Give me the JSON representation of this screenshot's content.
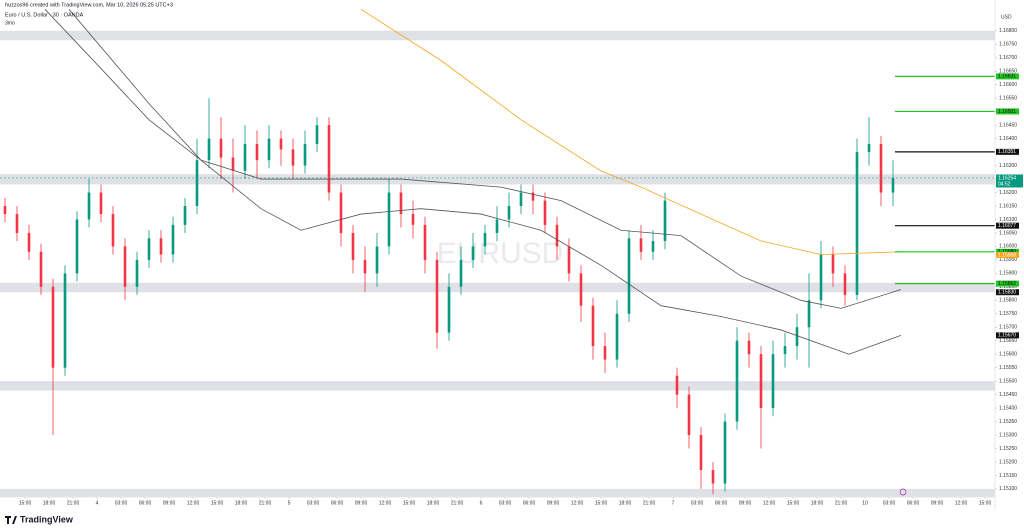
{
  "chart_data": {
    "type": "candlestick",
    "header": "huzzos96 created with TradingView.com, Mar 10, 2026 05:25 UTC+3",
    "title": "Euro / U.S. Dollar · 30 · OANDA",
    "subtitle": "3mo",
    "watermark": "EURUSD",
    "y_axis_unit": "USD",
    "brand": "TradingView",
    "up_color": "#089981",
    "down_color": "#f23645",
    "x": [
      12.5,
      14,
      15.5,
      17,
      18.5,
      20,
      21.5,
      23,
      24.5,
      26,
      27.5,
      29,
      30.5,
      32,
      33.5,
      35,
      36.5,
      38,
      39.5,
      41,
      42.5,
      44,
      45.5,
      47,
      48.5,
      50,
      51.5,
      53,
      54.5,
      56,
      57.5,
      59,
      60.5,
      62,
      63.5,
      65,
      66.5,
      68,
      69.5,
      71,
      72.5,
      74,
      75.5,
      77,
      78.5,
      80,
      81.5,
      83,
      84.5,
      86,
      87.5,
      89,
      90.5,
      92,
      93.5,
      95,
      96.5,
      98,
      99.5,
      101,
      102.5,
      104,
      105.5,
      107,
      108.5,
      110,
      111.5,
      113,
      114.5,
      116,
      117.5,
      119,
      120.5,
      122,
      123.5
    ],
    "open": [
      1.1615,
      1.1612,
      1.1605,
      1.1598,
      1.1585,
      1.1555,
      1.159,
      1.161,
      1.162,
      1.1612,
      1.16,
      1.1585,
      1.1595,
      1.1603,
      1.1597,
      1.1608,
      1.1615,
      1.1632,
      1.164,
      1.1633,
      1.1628,
      1.1638,
      1.1632,
      1.164,
      1.1636,
      1.163,
      1.1638,
      1.1645,
      1.162,
      1.1605,
      1.1595,
      1.159,
      1.16,
      1.162,
      1.1612,
      1.1608,
      1.1595,
      1.1568,
      1.1585,
      1.1595,
      1.16,
      1.1605,
      1.161,
      1.1615,
      1.162,
      1.1617,
      1.1608,
      1.16,
      1.159,
      1.1578,
      1.1563,
      1.1558,
      1.1575,
      1.1603,
      1.1598,
      1.1602,
      1.1552,
      1.1545,
      1.153,
      1.1517,
      1.1512,
      1.1535,
      1.1565,
      1.156,
      1.154,
      1.156,
      1.1563,
      1.157,
      1.158,
      1.1597,
      1.159,
      1.1582,
      1.1635,
      1.1638,
      1.162
    ],
    "high": [
      1.1618,
      1.1615,
      1.1608,
      1.1601,
      1.1588,
      1.1593,
      1.1613,
      1.1625,
      1.1623,
      1.1615,
      1.1603,
      1.1598,
      1.1606,
      1.1606,
      1.1611,
      1.1618,
      1.164,
      1.1655,
      1.1648,
      1.164,
      1.1645,
      1.1643,
      1.1645,
      1.1643,
      1.164,
      1.1643,
      1.1648,
      1.1648,
      1.1623,
      1.1608,
      1.16,
      1.1605,
      1.1625,
      1.1623,
      1.1617,
      1.1611,
      1.1598,
      1.159,
      1.16,
      1.1605,
      1.1608,
      1.1615,
      1.162,
      1.1623,
      1.1623,
      1.162,
      1.1611,
      1.1603,
      1.1593,
      1.1581,
      1.1568,
      1.158,
      1.1606,
      1.1608,
      1.1606,
      1.162,
      1.1555,
      1.1548,
      1.1533,
      1.152,
      1.1538,
      1.157,
      1.1568,
      1.1563,
      1.1565,
      1.1568,
      1.1575,
      1.159,
      1.1602,
      1.16,
      1.1593,
      1.164,
      1.1648,
      1.1641,
      1.1632
    ],
    "low": [
      1.1609,
      1.1602,
      1.1595,
      1.1582,
      1.153,
      1.1552,
      1.1587,
      1.1607,
      1.1609,
      1.1597,
      1.158,
      1.1582,
      1.1592,
      1.1594,
      1.1594,
      1.1605,
      1.1612,
      1.1629,
      1.1625,
      1.162,
      1.1625,
      1.1625,
      1.1629,
      1.163,
      1.1625,
      1.1627,
      1.1635,
      1.1617,
      1.16,
      1.159,
      1.1583,
      1.1585,
      1.1597,
      1.1607,
      1.1603,
      1.159,
      1.1562,
      1.1565,
      1.1582,
      1.1592,
      1.1597,
      1.1602,
      1.1607,
      1.1612,
      1.1612,
      1.1605,
      1.1595,
      1.1587,
      1.1572,
      1.1558,
      1.1553,
      1.1555,
      1.1572,
      1.1595,
      1.1595,
      1.1599,
      1.154,
      1.1525,
      1.151,
      1.1508,
      1.1509,
      1.1532,
      1.1555,
      1.1525,
      1.1537,
      1.1555,
      1.1558,
      1.1555,
      1.1577,
      1.1585,
      1.1578,
      1.158,
      1.163,
      1.1615,
      1.1615
    ],
    "close": [
      1.1612,
      1.1605,
      1.1598,
      1.1585,
      1.1555,
      1.159,
      1.161,
      1.162,
      1.1612,
      1.16,
      1.1585,
      1.1595,
      1.1603,
      1.1597,
      1.1608,
      1.1615,
      1.1632,
      1.164,
      1.1633,
      1.1628,
      1.1638,
      1.1632,
      1.164,
      1.1636,
      1.163,
      1.1638,
      1.1645,
      1.162,
      1.1605,
      1.1595,
      1.159,
      1.16,
      1.162,
      1.1612,
      1.1608,
      1.1595,
      1.1568,
      1.1585,
      1.1595,
      1.16,
      1.1605,
      1.161,
      1.1615,
      1.162,
      1.1617,
      1.1608,
      1.16,
      1.159,
      1.1578,
      1.1563,
      1.1558,
      1.1575,
      1.1603,
      1.1598,
      1.1602,
      1.1617,
      1.1545,
      1.153,
      1.1517,
      1.1512,
      1.1535,
      1.1565,
      1.156,
      1.154,
      1.156,
      1.1563,
      1.157,
      1.158,
      1.1597,
      1.159,
      1.1582,
      1.1635,
      1.1638,
      1.162,
      1.16254
    ],
    "lines": [
      {
        "color": "#f5a623",
        "x": [
          57,
          67,
          77,
          87,
          92,
          99.5,
          107,
          114.5,
          124.5
        ],
        "values": [
          1.1688,
          1.1669,
          1.1647,
          1.1628,
          1.1622,
          1.1612,
          1.1602,
          1.1597,
          1.1598
        ]
      },
      {
        "color": "#555555",
        "x": [
          17.5,
          24.5,
          30.5,
          37,
          44.5,
          52,
          62,
          74.5,
          82,
          89.5,
          97,
          104.5,
          112,
          117,
          124.5
        ],
        "values": [
          1.1688,
          1.1666,
          1.1647,
          1.1632,
          1.1625,
          1.1625,
          1.1625,
          1.1622,
          1.1617,
          1.1606,
          1.1604,
          1.1589,
          1.158,
          1.1577,
          1.1584
        ]
      },
      {
        "color": "#555555",
        "x": [
          20.5,
          30.5,
          37,
          44.5,
          49.5,
          57,
          64.5,
          72,
          79.5,
          87,
          94.5,
          102,
          109.5,
          118,
          124.5
        ],
        "values": [
          1.1688,
          1.1653,
          1.1632,
          1.1614,
          1.1606,
          1.1612,
          1.1614,
          1.1612,
          1.1606,
          1.1593,
          1.1578,
          1.1574,
          1.1569,
          1.156,
          1.1567
        ]
      }
    ],
    "zones": [
      [
        1.16765,
        1.168
      ],
      [
        1.1623,
        1.16268
      ],
      [
        1.1583,
        1.15865
      ],
      [
        1.15465,
        1.155
      ],
      [
        1.1507,
        1.151
      ]
    ],
    "levels": [
      {
        "value": 1.16631,
        "label": "1.16631",
        "color": "#22c322",
        "line": true
      },
      {
        "value": 1.16501,
        "label": "1.16501",
        "color": "#22c322",
        "line": true
      },
      {
        "value": 1.16351,
        "label": "1.16351",
        "color": "#111111",
        "line": true
      },
      {
        "value": 1.16077,
        "label": "1.16077",
        "color": "#111111",
        "line": true
      },
      {
        "value": 1.1598,
        "label": "1.15980",
        "color": "#22c322",
        "line": true
      },
      {
        "value": 1.15968,
        "label": "1.15968",
        "color": "#f5a623",
        "line": false
      },
      {
        "value": 1.15862,
        "label": "1.15862",
        "color": "#22c322",
        "line": true
      },
      {
        "value": 1.1583,
        "label": "1.15830",
        "color": "#111111",
        "line": false
      },
      {
        "value": 1.1567,
        "label": "1.15670",
        "color": "#111111",
        "line": false
      }
    ],
    "last_price": {
      "value": 1.16254,
      "label": "1.16254",
      "timer": "04:52",
      "color": "#089981"
    },
    "xlim": [
      11.875,
      136.25
    ],
    "xticks": [
      {
        "value": 15,
        "label": "15:00"
      },
      {
        "value": 18,
        "label": "18:00"
      },
      {
        "value": 21,
        "label": "21:00"
      },
      {
        "value": 24,
        "label": "4"
      },
      {
        "value": 27,
        "label": "03:00"
      },
      {
        "value": 30,
        "label": "06:00"
      },
      {
        "value": 33,
        "label": "09:00"
      },
      {
        "value": 36,
        "label": "12:00"
      },
      {
        "value": 39,
        "label": "15:00"
      },
      {
        "value": 42,
        "label": "18:00"
      },
      {
        "value": 45,
        "label": "21:00"
      },
      {
        "value": 48,
        "label": "5"
      },
      {
        "value": 51,
        "label": "03:00"
      },
      {
        "value": 54,
        "label": "06:00"
      },
      {
        "value": 57,
        "label": "09:00"
      },
      {
        "value": 60,
        "label": "12:00"
      },
      {
        "value": 63,
        "label": "15:00"
      },
      {
        "value": 66,
        "label": "18:00"
      },
      {
        "value": 69,
        "label": "21:00"
      },
      {
        "value": 72,
        "label": "6"
      },
      {
        "value": 75,
        "label": "03:00"
      },
      {
        "value": 78,
        "label": "06:00"
      },
      {
        "value": 81,
        "label": "09:00"
      },
      {
        "value": 84,
        "label": "12:00"
      },
      {
        "value": 87,
        "label": "15:00"
      },
      {
        "value": 90,
        "label": "18:00"
      },
      {
        "value": 93,
        "label": "21:00"
      },
      {
        "value": 96,
        "label": "7"
      },
      {
        "value": 99,
        "label": "03:00"
      },
      {
        "value": 102,
        "label": "06:00"
      },
      {
        "value": 105,
        "label": "09:00"
      },
      {
        "value": 108,
        "label": "12:00"
      },
      {
        "value": 111,
        "label": "15:00"
      },
      {
        "value": 114,
        "label": "18:00"
      },
      {
        "value": 117,
        "label": "21:00"
      },
      {
        "value": 120,
        "label": "10"
      },
      {
        "value": 123,
        "label": "03:00"
      },
      {
        "value": 126,
        "label": "06:00"
      },
      {
        "value": 129,
        "label": "09:00"
      },
      {
        "value": 132,
        "label": "12:00"
      },
      {
        "value": 135,
        "label": "15:00"
      }
    ],
    "ylim": [
      1.1507,
      1.1687
    ],
    "yticks": [
      {
        "value": 1.151,
        "label": "1.15100"
      },
      {
        "value": 1.1515,
        "label": "1.15150"
      },
      {
        "value": 1.152,
        "label": "1.15200"
      },
      {
        "value": 1.1525,
        "label": "1.15250"
      },
      {
        "value": 1.153,
        "label": "1.15300"
      },
      {
        "value": 1.1535,
        "label": "1.15350"
      },
      {
        "value": 1.154,
        "label": "1.15400"
      },
      {
        "value": 1.1545,
        "label": "1.15450"
      },
      {
        "value": 1.155,
        "label": "1.15500"
      },
      {
        "value": 1.1555,
        "label": "1.15550"
      },
      {
        "value": 1.156,
        "label": "1.15600"
      },
      {
        "value": 1.1565,
        "label": "1.15650"
      },
      {
        "value": 1.157,
        "label": "1.15700"
      },
      {
        "value": 1.1575,
        "label": "1.15750"
      },
      {
        "value": 1.158,
        "label": "1.15800"
      },
      {
        "value": 1.1585,
        "label": "1.15850"
      },
      {
        "value": 1.159,
        "label": "1.15900"
      },
      {
        "value": 1.1595,
        "label": "1.15950"
      },
      {
        "value": 1.16,
        "label": "1.16000"
      },
      {
        "value": 1.1605,
        "label": "1.16050"
      },
      {
        "value": 1.161,
        "label": "1.16100"
      },
      {
        "value": 1.1615,
        "label": "1.16150"
      },
      {
        "value": 1.162,
        "label": "1.16200"
      },
      {
        "value": 1.1625,
        "label": "1.16250"
      },
      {
        "value": 1.163,
        "label": "1.16300"
      },
      {
        "value": 1.1635,
        "label": "1.16350"
      },
      {
        "value": 1.164,
        "label": "1.16400"
      },
      {
        "value": 1.1645,
        "label": "1.16450"
      },
      {
        "value": 1.165,
        "label": "1.16500"
      },
      {
        "value": 1.1655,
        "label": "1.16550"
      },
      {
        "value": 1.166,
        "label": "1.16600"
      },
      {
        "value": 1.1665,
        "label": "1.16650"
      },
      {
        "value": 1.167,
        "label": "1.16700"
      },
      {
        "value": 1.1675,
        "label": "1.16750"
      },
      {
        "value": 1.168,
        "label": "1.16800"
      }
    ]
  }
}
